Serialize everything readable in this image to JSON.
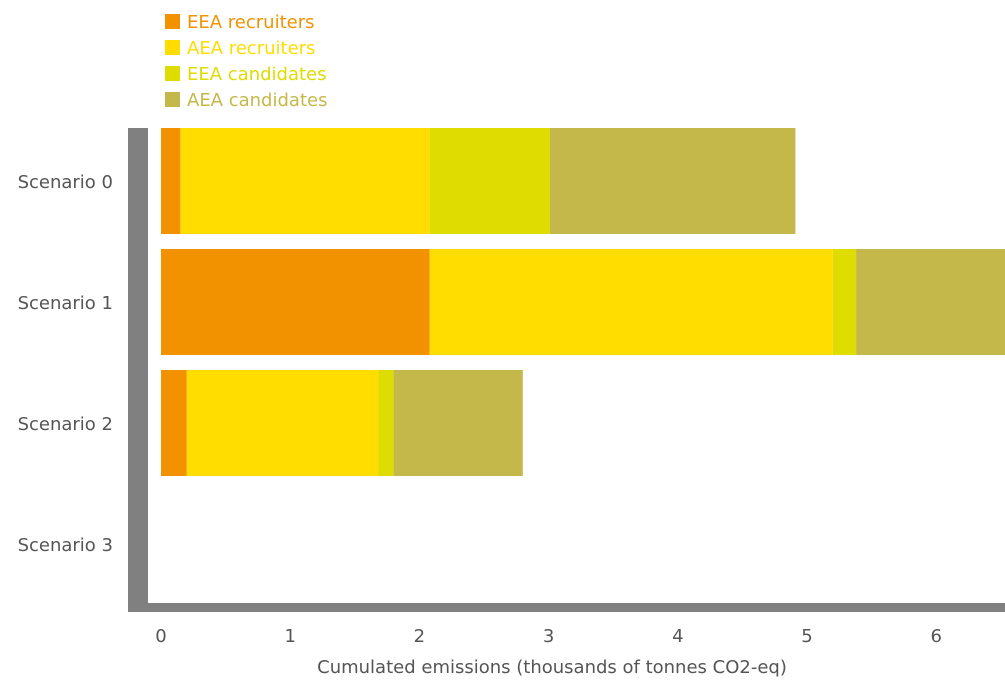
{
  "chart_data": {
    "type": "bar",
    "orientation": "horizontal",
    "stacked": true,
    "categories": [
      "Scenario 0",
      "Scenario 1",
      "Scenario 2",
      "Scenario 3"
    ],
    "series": [
      {
        "name": "EEA recruiters",
        "color": "#f39200",
        "values": [
          0.15,
          2.08,
          0.2,
          0
        ]
      },
      {
        "name": "AEA recruiters",
        "color": "#ffdd00",
        "values": [
          1.93,
          3.12,
          1.48,
          0
        ]
      },
      {
        "name": "EEA candidates",
        "color": "#dedc00",
        "values": [
          0.93,
          0.18,
          0.12,
          0
        ]
      },
      {
        "name": "AEA candidates",
        "color": "#c5b84a",
        "values": [
          1.9,
          1.5,
          1.0,
          0
        ]
      }
    ],
    "xlabel": "Cumulated emissions (thousands of tonnes CO2-eq)",
    "ylabel": "",
    "xticks": [
      0,
      1,
      2,
      3,
      4,
      5,
      6
    ],
    "xlim": [
      0,
      6.6
    ],
    "legend_position": "top-left",
    "grid": false
  }
}
